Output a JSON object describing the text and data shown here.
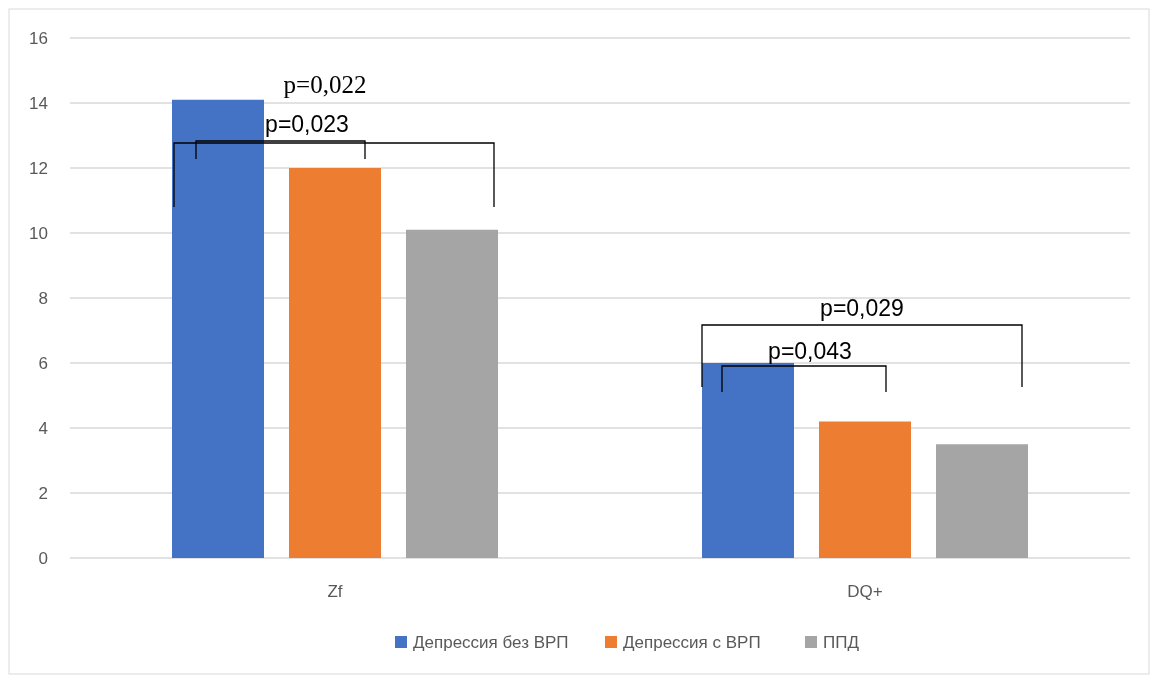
{
  "chart_data": {
    "type": "bar",
    "categories": [
      "Zf",
      "DQ+"
    ],
    "series": [
      {
        "name": "Депрессия без ВРП",
        "color": "#4472c4",
        "values": [
          14.1,
          6.0
        ]
      },
      {
        "name": "Депрессия с ВРП",
        "color": "#ed7d31",
        "values": [
          12.0,
          4.2
        ]
      },
      {
        "name": "ППД",
        "color": "#a5a5a5",
        "values": [
          10.1,
          3.5
        ]
      }
    ],
    "ylim": [
      0,
      16
    ],
    "yticks": [
      0,
      2,
      4,
      6,
      8,
      10,
      12,
      14,
      16
    ],
    "grid": "y",
    "legend": "bottom",
    "annotations": [
      "p=0,022",
      "p=0,023",
      "p=0,029",
      "p=0,043"
    ]
  }
}
